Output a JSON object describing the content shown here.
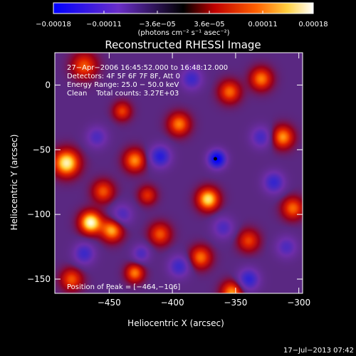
{
  "chart_data": {
    "type": "heatmap",
    "title": "Reconstructed RHESSI Image",
    "xlabel": "Heliocentric X (arcsec)",
    "ylabel": "Heliocentric Y (arcsec)",
    "xlim": [
      -493,
      -297
    ],
    "ylim": [
      -161,
      25
    ],
    "x_ticks": [
      -450,
      -400,
      -350,
      -300
    ],
    "x_tick_labels": [
      "−450",
      "−400",
      "−350",
      "−300"
    ],
    "y_ticks": [
      0,
      -50,
      -100,
      -150
    ],
    "y_tick_labels": [
      "0",
      "−50",
      "−100",
      "−150"
    ],
    "colorbar": {
      "min": -0.00018,
      "max": 0.00018,
      "ticks": [
        -0.00018,
        -0.00011,
        -3.6e-05,
        3.6e-05,
        0.00011,
        0.00018
      ],
      "tick_labels": [
        "−0.00018",
        "−0.00011",
        "−3.6e−05",
        "3.6e−05",
        "0.00011",
        "0.00018"
      ],
      "unit_label": "(photons cm⁻² s⁻¹ asec⁻²)",
      "colors": [
        "#0000ff",
        "#7030c0",
        "#000000",
        "#c00000",
        "#ff6000",
        "#ffff80",
        "#ffffff"
      ]
    },
    "info_lines": [
      "27−Apr−2006 16:45:52.000 to 16:48:12.000",
      "Detectors: 4F 5F 6F 7F 8F, Att 0",
      "Energy Range: 25.0 − 50.0 keV",
      "Clean    Total counts: 3.27E+03"
    ],
    "peak_label": "Position of Peak = [−464,−106]",
    "peak_marker": {
      "x": -366,
      "y": -57
    },
    "sources": [
      {
        "x": -465,
        "y": -106,
        "amp": 1.0,
        "sigma": 6
      },
      {
        "x": -484,
        "y": -60,
        "amp": 0.95,
        "sigma": 7
      },
      {
        "x": -372,
        "y": -88,
        "amp": 0.88,
        "sigma": 6
      },
      {
        "x": -353,
        "y": -160,
        "amp": 0.7,
        "sigma": 6
      },
      {
        "x": -448,
        "y": -112,
        "amp": 0.75,
        "sigma": 6
      },
      {
        "x": -395,
        "y": -30,
        "amp": 0.65,
        "sigma": 6
      },
      {
        "x": -430,
        "y": -58,
        "amp": 0.68,
        "sigma": 6
      },
      {
        "x": -430,
        "y": -145,
        "amp": 0.65,
        "sigma": 5
      },
      {
        "x": -378,
        "y": -133,
        "amp": 0.62,
        "sigma": 6
      },
      {
        "x": -313,
        "y": -40,
        "amp": 0.7,
        "sigma": 6
      },
      {
        "x": -305,
        "y": -95,
        "amp": 0.6,
        "sigma": 6
      },
      {
        "x": -330,
        "y": 5,
        "amp": 0.65,
        "sigma": 6
      },
      {
        "x": -355,
        "y": -5,
        "amp": 0.6,
        "sigma": 6
      },
      {
        "x": -470,
        "y": 15,
        "amp": 0.55,
        "sigma": 7
      },
      {
        "x": -410,
        "y": -115,
        "amp": 0.55,
        "sigma": 6
      },
      {
        "x": -480,
        "y": -150,
        "amp": 0.55,
        "sigma": 6
      },
      {
        "x": -440,
        "y": -20,
        "amp": 0.5,
        "sigma": 5
      },
      {
        "x": -455,
        "y": -82,
        "amp": 0.55,
        "sigma": 6
      },
      {
        "x": -340,
        "y": -120,
        "amp": 0.5,
        "sigma": 6
      },
      {
        "x": -420,
        "y": -85,
        "amp": 0.45,
        "sigma": 5
      },
      {
        "x": -365,
        "y": -57,
        "amp": -1.0,
        "sigma": 5
      },
      {
        "x": -410,
        "y": -55,
        "amp": -0.7,
        "sigma": 6
      },
      {
        "x": -320,
        "y": -75,
        "amp": -0.6,
        "sigma": 6
      },
      {
        "x": -340,
        "y": -150,
        "amp": -0.65,
        "sigma": 6
      },
      {
        "x": -470,
        "y": -130,
        "amp": -0.55,
        "sigma": 6
      },
      {
        "x": -395,
        "y": -140,
        "amp": -0.55,
        "sigma": 6
      },
      {
        "x": -385,
        "y": 5,
        "amp": -0.55,
        "sigma": 6
      },
      {
        "x": -440,
        "y": -100,
        "amp": -0.45,
        "sigma": 6
      },
      {
        "x": -330,
        "y": -40,
        "amp": -0.5,
        "sigma": 6
      },
      {
        "x": -460,
        "y": -40,
        "amp": -0.45,
        "sigma": 6
      },
      {
        "x": -425,
        "y": -130,
        "amp": -0.45,
        "sigma": 5
      },
      {
        "x": -360,
        "y": -110,
        "amp": -0.45,
        "sigma": 6
      },
      {
        "x": -310,
        "y": -125,
        "amp": -0.45,
        "sigma": 6
      }
    ]
  },
  "footer": {
    "timestamp": "17−Jul−2013 07:42"
  }
}
